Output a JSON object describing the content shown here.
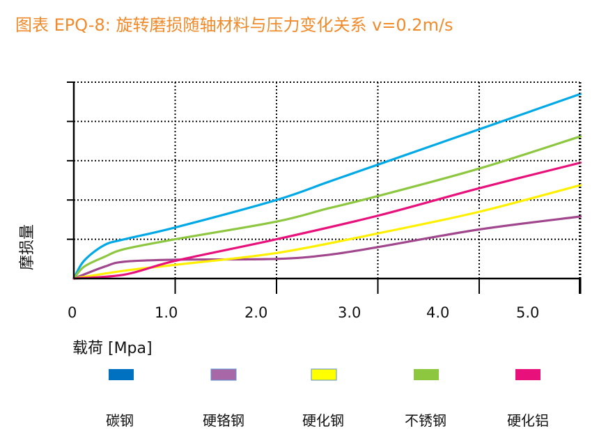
{
  "chart_data": {
    "type": "line",
    "title": "图表 EPQ-8: 旋转磨损随轴材料与压力变化关系 v=0.2m/s",
    "xlabel": "载荷 [Mpa]",
    "ylabel": "摩损量",
    "x_tick_labels": [
      "0",
      "1.0",
      "2.0",
      "3.0",
      "4.0",
      "5.0"
    ],
    "xlim": [
      0,
      5.0
    ],
    "ylim": [
      0,
      5
    ],
    "grid": true,
    "legend_position": "bottom",
    "series": [
      {
        "name": "碳钢",
        "color": "#00a9e5",
        "legend_color": "#0070c0",
        "x": [
          0,
          0.1,
          0.3,
          0.5,
          1.0,
          2.0,
          2.5,
          3.0,
          4.0,
          5.0
        ],
        "y": [
          0,
          0.45,
          0.85,
          1.0,
          1.3,
          2.0,
          2.45,
          2.9,
          3.8,
          4.7
        ]
      },
      {
        "name": "硬铬钢",
        "color": "#a0468c",
        "legend_color": "#a868a8",
        "x": [
          0,
          0.3,
          0.5,
          1.0,
          2.0,
          2.5,
          3.0,
          4.0,
          5.0
        ],
        "y": [
          0,
          0.3,
          0.43,
          0.48,
          0.5,
          0.6,
          0.8,
          1.25,
          1.58
        ]
      },
      {
        "name": "硬化钢",
        "color": "#fff000",
        "legend_color": "#ffff00",
        "x": [
          0,
          0.5,
          1.0,
          2.0,
          3.0,
          4.0,
          5.0
        ],
        "y": [
          0,
          0.2,
          0.35,
          0.65,
          1.15,
          1.7,
          2.38
        ]
      },
      {
        "name": "不锈钢",
        "color": "#8dc63f",
        "legend_color": "#8dc63f",
        "x": [
          0,
          0.1,
          0.3,
          0.5,
          1.0,
          2.0,
          2.5,
          3.0,
          4.0,
          5.0
        ],
        "y": [
          0,
          0.3,
          0.55,
          0.75,
          1.0,
          1.45,
          1.78,
          2.1,
          2.8,
          3.62
        ]
      },
      {
        "name": "硬化铝",
        "color": "#e8107a",
        "legend_color": "#e8107a",
        "x": [
          0,
          0.5,
          1.0,
          2.0,
          3.0,
          4.0,
          5.0
        ],
        "y": [
          0,
          0.1,
          0.45,
          1.0,
          1.6,
          2.3,
          2.95
        ]
      }
    ]
  }
}
